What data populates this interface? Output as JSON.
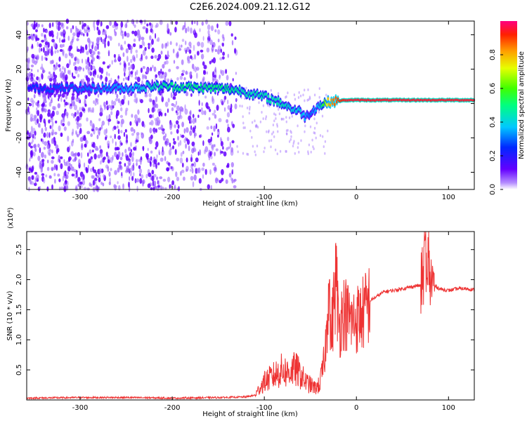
{
  "title": "C2E6.2024.009.21.12.G12",
  "chart_data": [
    {
      "type": "heatmap",
      "xlabel": "Height of straight line (km)",
      "ylabel": "Frequency (Hz)",
      "xlim": [
        -358,
        128
      ],
      "ylim": [
        -50,
        48
      ],
      "x_ticks": [
        -300,
        -200,
        -100,
        0,
        100
      ],
      "y_ticks": [
        -40,
        -20,
        0,
        20,
        40
      ],
      "colorbar": {
        "label": "Normalized spectral amplitude",
        "range": [
          0,
          1
        ],
        "ticks": [
          "0.0",
          "0.2",
          "0.4",
          "0.6",
          "0.8"
        ]
      },
      "ridge": {
        "x": [
          -358,
          -300,
          -250,
          -220,
          -200,
          -180,
          -160,
          -140,
          -125,
          -110,
          -100,
          -90,
          -80,
          -70,
          -60,
          -55,
          -50,
          -45,
          -40,
          -35,
          -30,
          -20,
          -10,
          0,
          20,
          50,
          80,
          100,
          128
        ],
        "freq": [
          9,
          9,
          9,
          10,
          10,
          9.5,
          9,
          8.5,
          7.5,
          5,
          4,
          2,
          0,
          -3,
          -5,
          -8,
          -5,
          -3,
          -1,
          0,
          1,
          1.5,
          2,
          2,
          2,
          2,
          2,
          2,
          2
        ],
        "amplitude": [
          0.25,
          0.3,
          0.35,
          0.45,
          0.5,
          0.5,
          0.5,
          0.5,
          0.45,
          0.45,
          0.45,
          0.45,
          0.45,
          0.4,
          0.4,
          0.35,
          0.3,
          0.35,
          0.4,
          0.6,
          0.8,
          0.9,
          0.95,
          0.95,
          0.95,
          0.95,
          0.95,
          0.95,
          0.95
        ]
      },
      "noise_region_x": [
        -358,
        -130
      ],
      "grid": false
    },
    {
      "type": "line",
      "xlabel": "Height of straight line (km)",
      "ylabel": "SNR (10 * v/v)",
      "y_exponent": "(x10⁴)",
      "xlim": [
        -358,
        128
      ],
      "ylim": [
        0,
        2.8
      ],
      "x_ticks": [
        -300,
        -200,
        -100,
        0,
        100
      ],
      "y_ticks": [
        "0.5",
        "1.0",
        "1.5",
        "2.0",
        "2.5"
      ],
      "color": "#ee3333",
      "series": [
        {
          "x": [
            -358,
            -300,
            -250,
            -200,
            -150,
            -120,
            -110,
            -105,
            -100,
            -95,
            -90,
            -85,
            -80,
            -75,
            -70,
            -65,
            -60,
            -55,
            -50,
            -45,
            -40,
            -35,
            -32,
            -30,
            -28,
            -25,
            -22,
            -20,
            -18,
            -15,
            -10,
            -5,
            0,
            5,
            10,
            15,
            20,
            25,
            30,
            40,
            50,
            60,
            65,
            70,
            73,
            75,
            77,
            78,
            80,
            82,
            85,
            90,
            100,
            110,
            120,
            128
          ],
          "y": [
            0.03,
            0.04,
            0.04,
            0.03,
            0.04,
            0.05,
            0.08,
            0.2,
            0.3,
            0.35,
            0.4,
            0.45,
            0.5,
            0.45,
            0.5,
            0.5,
            0.4,
            0.3,
            0.25,
            0.2,
            0.25,
            0.6,
            1.2,
            2.3,
            1.0,
            1.5,
            2.1,
            1.4,
            1.2,
            1.5,
            1.4,
            1.3,
            1.35,
            1.4,
            1.5,
            1.65,
            1.7,
            1.75,
            1.8,
            1.82,
            1.85,
            1.88,
            1.9,
            1.9,
            2.1,
            2.75,
            1.5,
            2.6,
            1.9,
            2.0,
            1.9,
            1.85,
            1.82,
            1.85,
            1.85,
            1.83
          ]
        }
      ],
      "grid": false
    }
  ]
}
